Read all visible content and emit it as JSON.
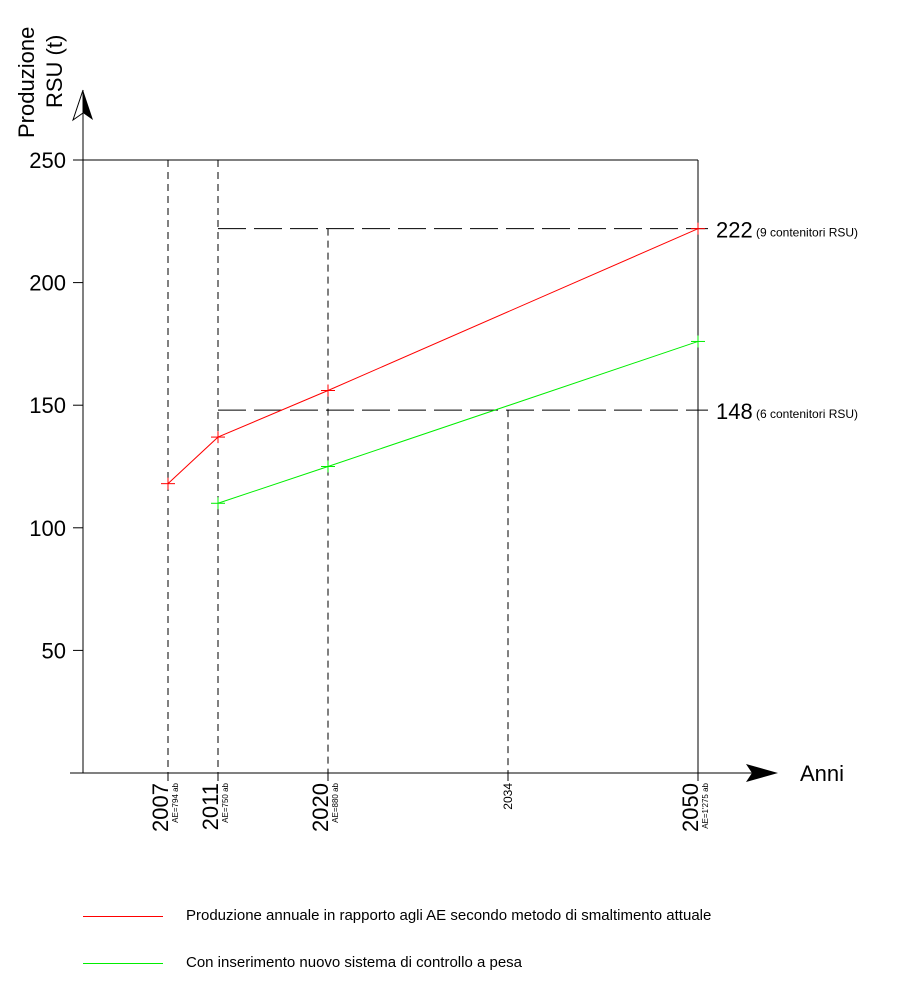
{
  "chart_data": {
    "type": "line",
    "ylabel_line1": "Produzione",
    "ylabel_line2": "RSU (t)",
    "xlabel": "Anni",
    "ylim": [
      0,
      250
    ],
    "yticks": [
      50,
      100,
      150,
      200,
      250
    ],
    "xlim": [
      2004,
      2050
    ],
    "xticks": [
      {
        "year": 2007,
        "label": "2007",
        "note": "AE=794 ab"
      },
      {
        "year": 2011,
        "label": "2011",
        "note": "AE=750 ab"
      },
      {
        "year": 2020,
        "label": "2020",
        "note": "AE=880 ab"
      },
      {
        "year": 2034,
        "label": "2034",
        "note": ""
      },
      {
        "year": 2050,
        "label": "2050",
        "note": "AE=1'275 ab"
      }
    ],
    "series": [
      {
        "name": "Produzione annuale in rapporto agli AE secondo metodo di smaltimento attuale",
        "color": "#ff0000",
        "points": [
          [
            2007,
            118
          ],
          [
            2011,
            137
          ],
          [
            2020,
            156
          ],
          [
            2050,
            222
          ]
        ]
      },
      {
        "name": "Con inserimento nuovo sistema di controllo a pesa",
        "color": "#00ee00",
        "points": [
          [
            2011,
            110
          ],
          [
            2020,
            125
          ],
          [
            2050,
            176
          ]
        ]
      }
    ],
    "reference_lines": [
      {
        "value": 222,
        "value_label": "222",
        "note": "(9 contenitori RSU)"
      },
      {
        "value": 148,
        "value_label": "148",
        "note": "(6 contenitori RSU)"
      }
    ],
    "grid": false,
    "legend_position": "bottom"
  }
}
